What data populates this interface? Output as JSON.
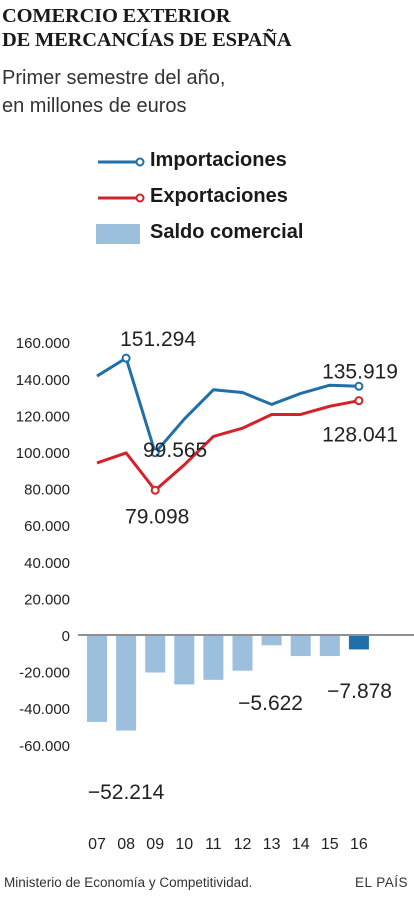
{
  "header": {
    "title_line1": "COMERCIO EXTERIOR",
    "title_line2": "DE MERCANCÍAS DE ESPAÑA",
    "subtitle_line1": "Primer semestre del año,",
    "subtitle_line2": "en millones de euros"
  },
  "legend": {
    "imports": "Importaciones",
    "exports": "Exportaciones",
    "balance": "Saldo comercial"
  },
  "colors": {
    "imports": "#1f6fa8",
    "exports": "#d2232a",
    "balance": "#9bbfdd",
    "balance_highlight": "#1f6fa8"
  },
  "chart_data": {
    "type": "line",
    "categories": [
      "07",
      "08",
      "09",
      "10",
      "11",
      "12",
      "13",
      "14",
      "15",
      "16"
    ],
    "series": [
      {
        "name": "Importaciones",
        "type": "line",
        "values": [
          141500,
          151294,
          99565,
          118000,
          134000,
          132500,
          126000,
          132000,
          136500,
          135919
        ]
      },
      {
        "name": "Exportaciones",
        "type": "line",
        "values": [
          94000,
          99500,
          79098,
          93000,
          108500,
          113000,
          120500,
          120500,
          125000,
          128041
        ]
      },
      {
        "name": "Saldo comercial",
        "type": "bar",
        "values": [
          -47500,
          -52214,
          -20500,
          -27000,
          -24500,
          -19500,
          -5622,
          -11500,
          -11500,
          -7878
        ]
      }
    ],
    "ylim": [
      -70000,
      170000
    ],
    "yticks": [
      160000,
      140000,
      120000,
      100000,
      80000,
      60000,
      40000,
      20000,
      0,
      -20000,
      -40000,
      -60000
    ],
    "ytick_labels": [
      "160.000",
      "140.000",
      "120.000",
      "100.000",
      "80.000",
      "60.000",
      "40.000",
      "20.000",
      "0",
      "-20.000",
      "-40.000",
      "-60.000"
    ],
    "annotations": {
      "imports_max": "151.294",
      "imports_min": "99.565",
      "imports_last": "135.919",
      "exports_min": "79.098",
      "exports_last": "128.041",
      "balance_min": "−52.214",
      "balance_13": "−5.622",
      "balance_last": "−7.878"
    }
  },
  "footer": {
    "source": "Ministerio de Economía y Competitividad.",
    "brand": "EL PAÍS"
  }
}
